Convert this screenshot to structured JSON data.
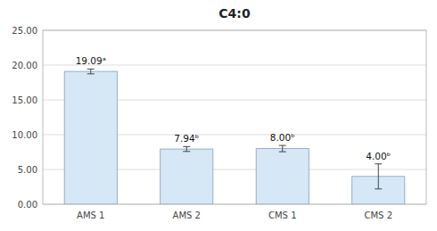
{
  "chart_data": {
    "type": "bar",
    "title": "C4:0",
    "categories": [
      "AMS 1",
      "AMS 2",
      "CMS 1",
      "CMS 2"
    ],
    "values": [
      19.09,
      7.94,
      8.0,
      4.0
    ],
    "errors": [
      0.35,
      0.35,
      0.45,
      1.8
    ],
    "value_labels": [
      "19.09ᵃ",
      "7.94ᵇ",
      "8.00ᵇ",
      "4.00ᵇ"
    ],
    "data_labels": true,
    "color": "#d6e8f5",
    "ylim": [
      0,
      25
    ],
    "yticks": [
      {
        "value": 0.0,
        "label": "0.00"
      },
      {
        "value": 5.0,
        "label": "5.00"
      },
      {
        "value": 10.0,
        "label": "10.00"
      },
      {
        "value": 15.0,
        "label": "15.00"
      },
      {
        "value": 20.0,
        "label": "20.00"
      },
      {
        "value": 25.0,
        "label": "25.00"
      }
    ],
    "grid": true
  }
}
